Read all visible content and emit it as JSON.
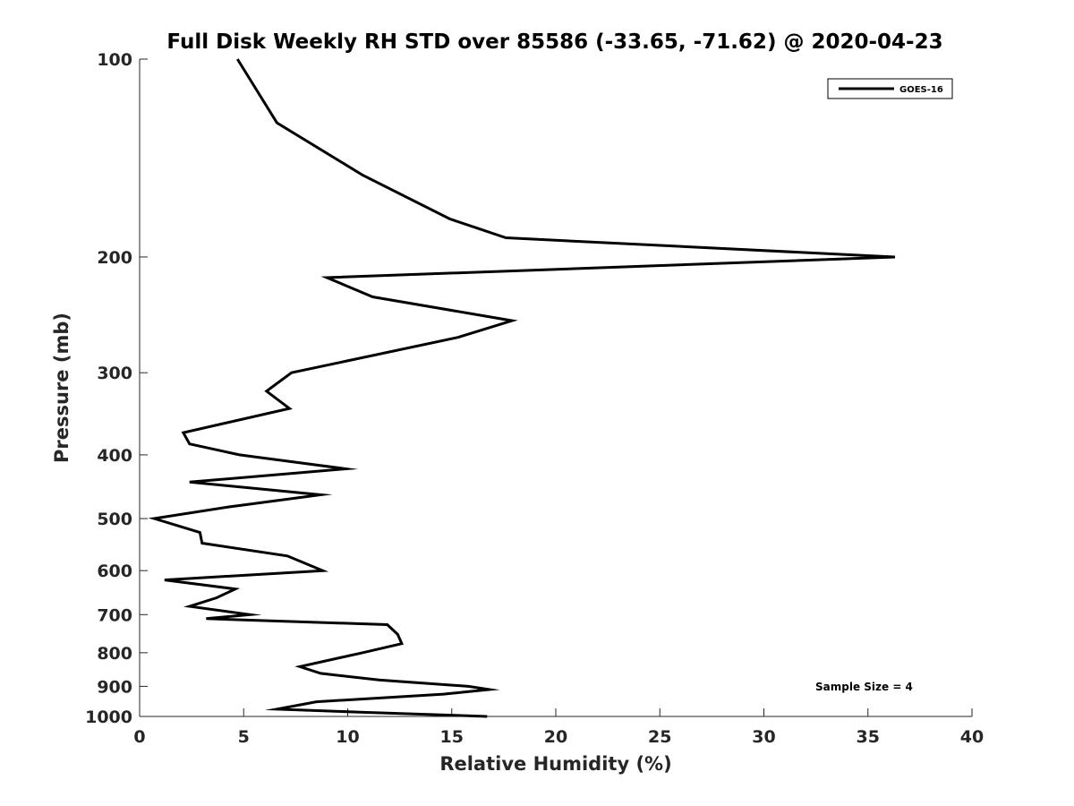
{
  "chart_data": {
    "type": "line",
    "title": "Full Disk Weekly RH STD over 85586 (-33.65, -71.62) @ 2020-04-23",
    "xlabel": "Relative Humidity (%)",
    "ylabel": "Pressure (mb)",
    "xlim": [
      0,
      40
    ],
    "ylim": [
      100,
      1000
    ],
    "yscale": "log",
    "y_reversed": true,
    "grid": false,
    "legend_position": "top-right",
    "x_ticks": [
      "0",
      "5",
      "10",
      "15",
      "20",
      "25",
      "30",
      "35",
      "40"
    ],
    "y_ticks": [
      "100",
      "200",
      "300",
      "400",
      "500",
      "600",
      "700",
      "800",
      "900",
      "1000"
    ],
    "annotation": "Sample Size = 4",
    "series": [
      {
        "name": "GOES-16",
        "color": "#000000",
        "x": [
          4.7,
          6.6,
          10.7,
          14.9,
          17.6,
          36.3,
          9.0,
          11.2,
          17.9,
          15.3,
          7.3,
          6.1,
          7.2,
          2.1,
          2.4,
          4.8,
          9.9,
          2.4,
          8.7,
          4.3,
          0.7,
          2.9,
          3.0,
          7.1,
          8.8,
          1.2,
          4.6,
          3.7,
          2.4,
          5.3,
          3.2,
          11.9,
          12.4,
          12.6,
          10.7,
          7.7,
          8.7,
          11.5,
          15.8,
          16.8,
          14.6,
          8.5,
          6.6,
          10.6,
          16.7
        ],
        "y": [
          100,
          125,
          150,
          175,
          187,
          200,
          215,
          230,
          250,
          265,
          300,
          320,
          340,
          370,
          385,
          400,
          420,
          440,
          460,
          480,
          500,
          525,
          545,
          570,
          600,
          620,
          640,
          660,
          680,
          700,
          710,
          725,
          750,
          775,
          800,
          840,
          860,
          880,
          900,
          910,
          925,
          950,
          975,
          985,
          1000
        ]
      }
    ]
  }
}
